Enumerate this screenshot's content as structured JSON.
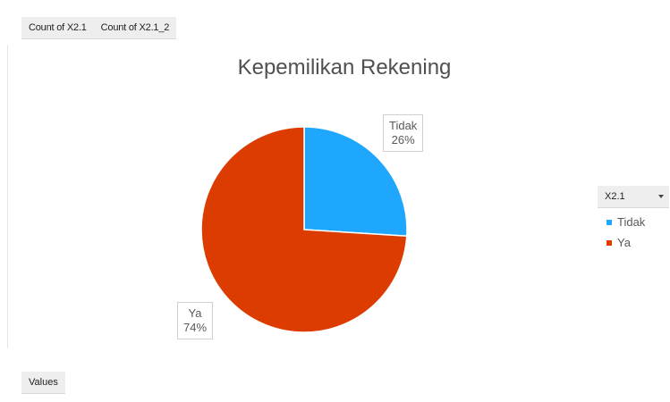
{
  "pivot": {
    "field_buttons": [
      "Count of X2.1",
      "Count of X2.1_2"
    ],
    "values_button": "Values",
    "legend_field": "X2.1"
  },
  "colors": {
    "tidak": "#1ea7fd",
    "ya": "#dd3c00"
  },
  "chart_data": {
    "type": "pie",
    "title": "Kepemilikan Rekening",
    "categories": [
      "Tidak",
      "Ya"
    ],
    "values": [
      26,
      74
    ],
    "value_labels": [
      "26%",
      "74%"
    ],
    "legend": {
      "title": "X2.1",
      "entries": [
        "Tidak",
        "Ya"
      ],
      "position": "right"
    }
  }
}
